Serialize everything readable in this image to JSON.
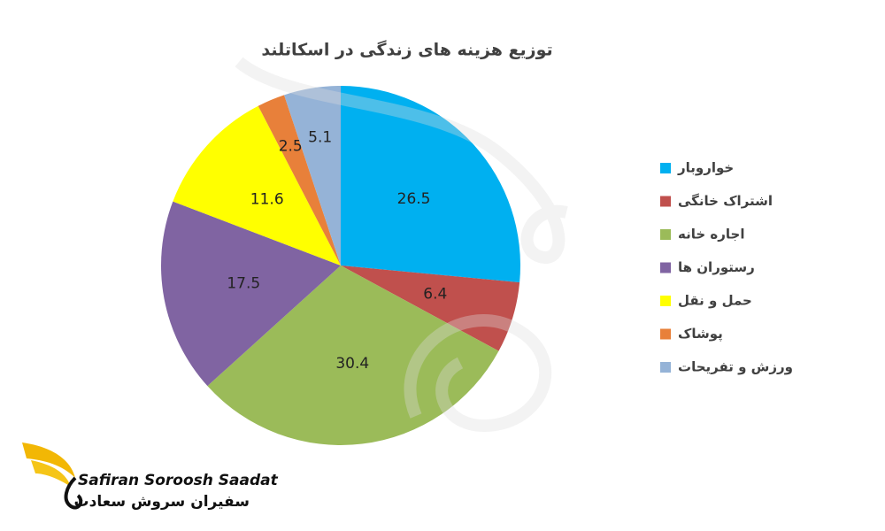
{
  "chart_data": {
    "type": "pie",
    "title": "توزیع هزینه های زندگی در اسکاتلند",
    "categories": [
      "خواروبار",
      "اشتراک خانگی",
      "اجاره خانه",
      "رستوران ها",
      "حمل و نقل",
      "پوشاک",
      "ورزش و تفریحات"
    ],
    "values": [
      26.5,
      6.4,
      30.4,
      17.5,
      11.6,
      2.5,
      5.1
    ],
    "colors": [
      "#00b0f0",
      "#c0504d",
      "#9bbb59",
      "#8064a2",
      "#ffff00",
      "#e8803a",
      "#95b3d7"
    ],
    "legend": "right"
  },
  "logo": {
    "name_en": "Safiran Soroosh Saadat",
    "name_fa": "سفیران سروش سعادت"
  }
}
